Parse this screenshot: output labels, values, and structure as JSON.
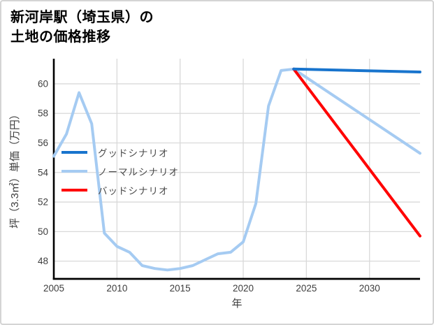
{
  "title": {
    "line1": "新河岸駅（埼玉県）の",
    "line2": "土地の価格推移"
  },
  "chart_data": {
    "type": "line",
    "title": "新河岸駅（埼玉県）の土地の価格推移",
    "xlabel": "年",
    "ylabel": "坪（3.3㎡）単価（万円）",
    "xlim": [
      2005,
      2034
    ],
    "ylim": [
      46.8,
      61.7
    ],
    "xticks": [
      2005,
      2010,
      2015,
      2020,
      2025,
      2030
    ],
    "yticks": [
      48,
      50,
      52,
      54,
      56,
      58,
      60
    ],
    "grid": true,
    "legend_position": "center-left",
    "colors": {
      "grid": "#d9d9d9",
      "axis": "#000000",
      "tick_text": "#3d3d3d",
      "legend_text": "#4a4a4a",
      "background": "#ffffff",
      "border": "#d4d4d4"
    },
    "series": [
      {
        "name": "グッドシナリオ",
        "color": "#1874cd",
        "x": [
          2024,
          2034
        ],
        "values": [
          61.0,
          60.8
        ]
      },
      {
        "name": "ノーマルシナリオ",
        "color": "#a5cbf2",
        "x": [
          2005,
          2006,
          2007,
          2008,
          2009,
          2010,
          2011,
          2012,
          2013,
          2014,
          2015,
          2016,
          2017,
          2018,
          2019,
          2020,
          2021,
          2022,
          2023,
          2024,
          2034
        ],
        "values": [
          55.1,
          56.6,
          59.4,
          57.3,
          49.9,
          49.0,
          48.6,
          47.7,
          47.5,
          47.4,
          47.5,
          47.7,
          48.1,
          48.5,
          48.6,
          49.3,
          51.9,
          58.5,
          60.9,
          61.0,
          55.3
        ]
      },
      {
        "name": "バッドシナリオ",
        "color": "#ff0000",
        "x": [
          2024,
          2034
        ],
        "values": [
          61.0,
          49.7
        ]
      }
    ]
  }
}
